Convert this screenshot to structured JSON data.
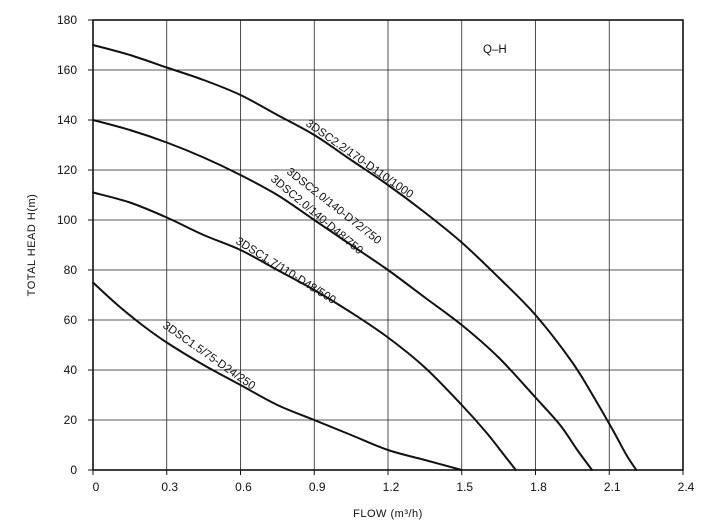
{
  "chart_data": {
    "type": "line",
    "title": "",
    "annotation": "Q–H",
    "xlabel": "FLOW (m³/h)",
    "ylabel": "TOTAL HEAD H(m)",
    "xlim": [
      0,
      2.4
    ],
    "ylim": [
      0,
      180
    ],
    "x_ticks": [
      0,
      0.3,
      0.6,
      0.9,
      1.2,
      1.5,
      1.8,
      2.1,
      2.4
    ],
    "x_tick_labels": [
      "0",
      "0.3",
      "0.6",
      "0.9",
      "1.2",
      "1.5",
      "1.8",
      "2.1",
      "2.4"
    ],
    "y_ticks": [
      0,
      20,
      40,
      60,
      80,
      100,
      120,
      140,
      160,
      180
    ],
    "y_tick_labels": [
      "0",
      "20",
      "40",
      "60",
      "80",
      "100",
      "120",
      "140",
      "160",
      "180"
    ],
    "grid": true,
    "line_color": "#111111",
    "series": [
      {
        "name": "3DSC1.5/75-D24/250",
        "x": [
          0,
          0.1,
          0.2,
          0.3,
          0.45,
          0.6,
          0.75,
          0.9,
          1.05,
          1.2,
          1.35,
          1.5
        ],
        "y": [
          75,
          66,
          58,
          51,
          42,
          34,
          26,
          20,
          14,
          8,
          4,
          0
        ]
      },
      {
        "name": "3DSC1.7/110-D48/500",
        "x": [
          0,
          0.15,
          0.3,
          0.45,
          0.6,
          0.75,
          0.9,
          1.05,
          1.2,
          1.35,
          1.5,
          1.6,
          1.68,
          1.72
        ],
        "y": [
          111,
          107,
          101,
          94,
          88,
          80,
          72,
          63,
          53,
          41,
          26,
          15,
          5,
          0
        ]
      },
      {
        "name": "3DSC2.0/140-D48/750",
        "x": [
          0,
          0.15,
          0.3,
          0.45,
          0.6,
          0.75,
          0.9,
          1.05,
          1.2,
          1.35,
          1.5,
          1.65,
          1.8,
          1.9,
          1.97,
          2.03
        ],
        "y": [
          140,
          136,
          131,
          125,
          118,
          110,
          100,
          90,
          80,
          69,
          58,
          45,
          29,
          18,
          8,
          0
        ]
      },
      {
        "name": "3DSC2.2/170-D110/1000",
        "x": [
          0,
          0.15,
          0.3,
          0.45,
          0.6,
          0.75,
          0.9,
          1.05,
          1.2,
          1.35,
          1.5,
          1.65,
          1.8,
          1.95,
          2.05,
          2.12,
          2.17,
          2.21
        ],
        "y": [
          170,
          166,
          161,
          156,
          150,
          142,
          134,
          124,
          114,
          103,
          91,
          77,
          62,
          43,
          27,
          15,
          6,
          0
        ]
      }
    ],
    "curve_labels": [
      {
        "text": "3DSC2.2/170-D110/1000"
      },
      {
        "text": "3DSC2.0/140-D72/750"
      },
      {
        "text": "3DSC2.0/140-D48/750"
      },
      {
        "text": "3DSC1.7/110-D48/500"
      },
      {
        "text": "3DSC1.5/75-D24/250"
      }
    ]
  }
}
